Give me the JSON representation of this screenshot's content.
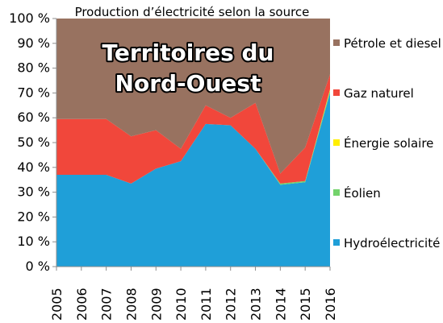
{
  "chart_data": {
    "type": "area",
    "title": "Production d’électricité selon la source",
    "overlay_title_lines": [
      "Territoires du",
      "Nord-Ouest"
    ],
    "x": [
      "2005",
      "2006",
      "2007",
      "2008",
      "2009",
      "2010",
      "2011",
      "2012",
      "2013",
      "2014",
      "2015",
      "2016"
    ],
    "ylim": [
      0,
      100
    ],
    "yticks": [
      "0 %",
      "10 %",
      "20 %",
      "30 %",
      "40 %",
      "50 %",
      "60 %",
      "70 %",
      "80 %",
      "90 %",
      "100 %"
    ],
    "stacked": true,
    "legend_position": "right",
    "series": [
      {
        "name": "Hydroélectricité",
        "color": "#1f9fd8",
        "values": [
          37,
          37,
          37,
          33.5,
          39.5,
          42.5,
          57.5,
          57,
          47.5,
          33,
          34,
          70
        ]
      },
      {
        "name": "Éolien",
        "color": "#73d36c",
        "values": [
          0,
          0,
          0,
          0,
          0,
          0,
          0,
          0,
          0,
          0.5,
          0.5,
          1
        ]
      },
      {
        "name": "Énergie solaire",
        "color": "#ffef00",
        "values": [
          0,
          0,
          0,
          0,
          0,
          0,
          0,
          0,
          0,
          0,
          0,
          0.5
        ]
      },
      {
        "name": "Gaz naturel",
        "color": "#f1473b",
        "values": [
          22.5,
          22.5,
          22.5,
          19,
          15.5,
          5,
          7.5,
          3,
          18.5,
          4,
          13.5,
          6
        ]
      },
      {
        "name": "Pétrole et diesel",
        "color": "#987260",
        "values": [
          40.5,
          40.5,
          40.5,
          47.5,
          45,
          52.5,
          35,
          40,
          34,
          62.5,
          52,
          22.5
        ]
      }
    ],
    "legend_order": [
      "Pétrole et diesel",
      "Gaz naturel",
      "Énergie solaire",
      "Éolien",
      "Hydroélectricité"
    ]
  }
}
